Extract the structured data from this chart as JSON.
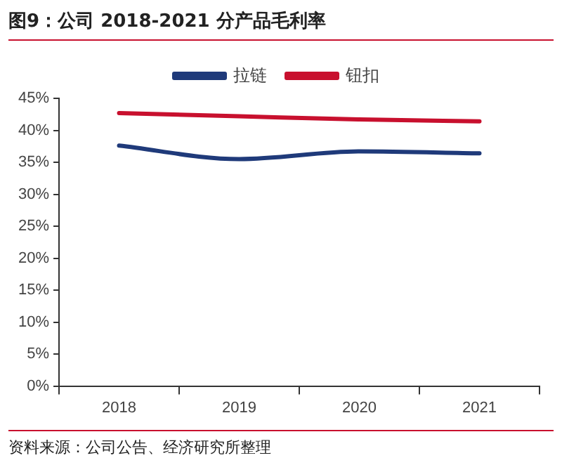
{
  "chart_data": {
    "type": "line",
    "title": "图9：公司 2018-2021 分产品毛利率",
    "categories": [
      "2018",
      "2019",
      "2020",
      "2021"
    ],
    "series": [
      {
        "name": "拉链",
        "color": "#1f3a7a",
        "values": [
          37.6,
          35.5,
          36.7,
          36.4
        ]
      },
      {
        "name": "钮扣",
        "color": "#c8102e",
        "values": [
          42.7,
          42.2,
          41.7,
          41.4
        ]
      }
    ],
    "ylim": [
      0,
      45
    ],
    "yticks": [
      {
        "value": 0,
        "label": "0%"
      },
      {
        "value": 5,
        "label": "5%"
      },
      {
        "value": 10,
        "label": "10%"
      },
      {
        "value": 15,
        "label": "15%"
      },
      {
        "value": 20,
        "label": "20%"
      },
      {
        "value": 25,
        "label": "25%"
      },
      {
        "value": 30,
        "label": "30%"
      },
      {
        "value": 35,
        "label": "35%"
      },
      {
        "value": 40,
        "label": "40%"
      },
      {
        "value": 45,
        "label": "45%"
      }
    ],
    "grid": false,
    "legend": "top",
    "marker": "none",
    "line_style": "solid",
    "annotations": [
      "资料来源：公司公告、经济研究所整理"
    ]
  }
}
